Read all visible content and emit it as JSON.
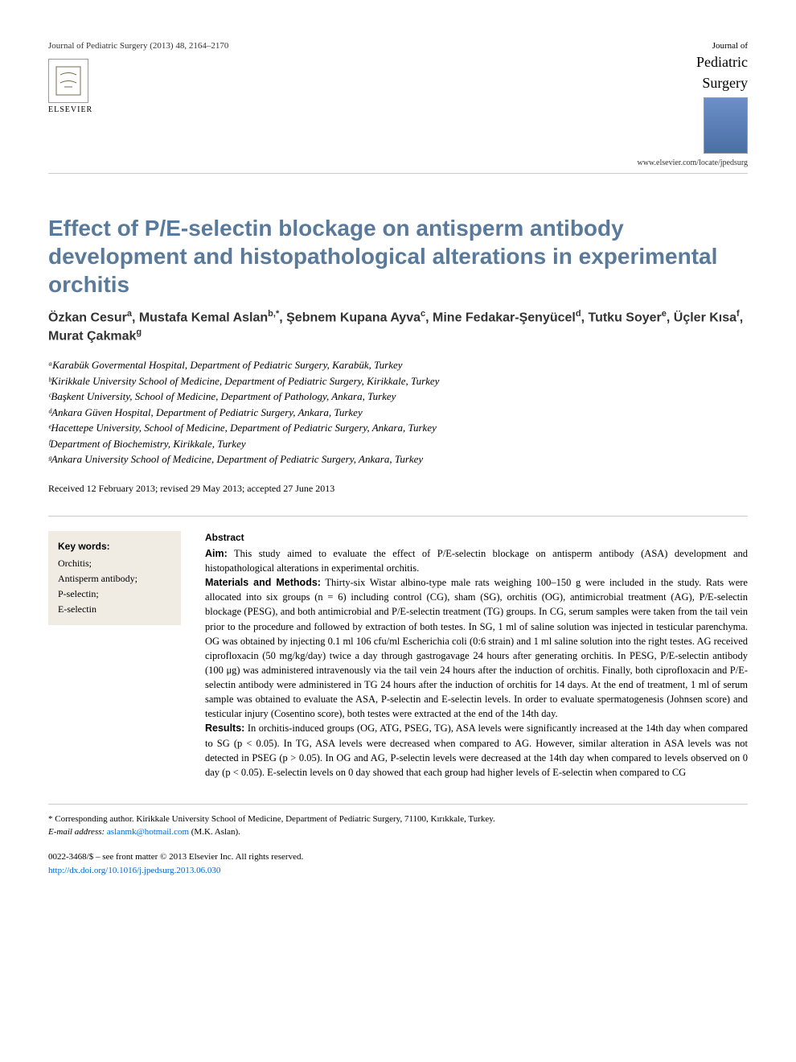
{
  "header": {
    "journal_reference": "Journal of Pediatric Surgery (2013) 48, 2164–2170",
    "publisher": "ELSEVIER",
    "journal_small": "Journal of",
    "journal_large_1": "Pediatric",
    "journal_large_2": "Surgery",
    "journal_url": "www.elsevier.com/locate/jpedsurg"
  },
  "title": "Effect of P/E-selectin blockage on antisperm antibody development and histopathological alterations in experimental orchitis",
  "authors_html": "Özkan Cesur<sup>a</sup>, Mustafa Kemal Aslan<sup>b,*</sup>, Şebnem Kupana Ayva<sup>c</sup>, Mine Fedakar-Şenyücel<sup>d</sup>, Tutku Soyer<sup>e</sup>, Üçler Kısa<sup>f</sup>, Murat Çakmak<sup>g</sup>",
  "affiliations": [
    "ᵃKarabük Govermental Hospital, Department of Pediatric Surgery, Karabük, Turkey",
    "ᵇKirikkale University School of Medicine, Department of Pediatric Surgery, Kirikkale, Turkey",
    "ᶜBaşkent University, School of Medicine, Department of Pathology, Ankara, Turkey",
    "ᵈAnkara Güven Hospital, Department of Pediatric Surgery, Ankara, Turkey",
    "ᵉHacettepe University, School of Medicine, Department of Pediatric Surgery, Ankara, Turkey",
    "ᶠDepartment of Biochemistry, Kirikkale, Turkey",
    "ᵍAnkara University School of Medicine, Department of Pediatric Surgery, Ankara, Turkey"
  ],
  "dates": "Received 12 February 2013; revised 29 May 2013; accepted 27 June 2013",
  "keywords": {
    "heading": "Key words:",
    "items": "Orchitis;\nAntisperm antibody;\nP-selectin;\nE-selectin"
  },
  "abstract": {
    "heading": "Abstract",
    "aim_label": "Aim:",
    "aim_text": " This study aimed to evaluate the effect of P/E-selectin blockage on antisperm antibody (ASA) development and histopathological alterations in experimental orchitis.",
    "methods_label": "Materials and Methods:",
    "methods_text": " Thirty-six Wistar albino-type male rats weighing 100–150 g were included in the study. Rats were allocated into six groups (n = 6) including control (CG), sham (SG), orchitis (OG), antimicrobial treatment (AG), P/E-selectin blockage (PESG), and both antimicrobial and P/E-selectin treatment (TG) groups. In CG, serum samples were taken from the tail vein prior to the procedure and followed by extraction of both testes. In SG, 1 ml of saline solution was injected in testicular parenchyma. OG was obtained by injecting 0.1 ml 106 cfu/ml Escherichia coli (0:6 strain) and 1 ml saline solution into the right testes. AG received ciprofloxacin (50 mg/kg/day) twice a day through gastrogavage 24 hours after generating orchitis. In PESG, P/E-selectin antibody (100 μg) was administered intravenously via the tail vein 24 hours after the induction of orchitis. Finally, both ciprofloxacin and P/E-selectin antibody were administered in TG 24 hours after the induction of orchitis for 14 days. At the end of treatment, 1 ml of serum sample was obtained to evaluate the ASA, P-selectin and E-selectin levels. In order to evaluate spermatogenesis (Johnsen score) and testicular injury (Cosentino score), both testes were extracted at the end of the 14th day.",
    "results_label": "Results:",
    "results_text": " In orchitis-induced groups (OG, ATG, PSEG, TG), ASA levels were significantly increased at the 14th day when compared to SG (p < 0.05). In TG, ASA levels were decreased when compared to AG. However, similar alteration in ASA levels was not detected in PSEG (p > 0.05). In OG and AG, P-selectin levels were decreased at the 14th day when compared to levels observed on 0 day (p < 0.05). E-selectin levels on 0 day showed that each group had higher levels of E-selectin when compared to CG"
  },
  "corresponding": {
    "marker": "*",
    "text": " Corresponding author. Kirikkale University School of Medicine, Department of Pediatric Surgery, 71100, Kırıkkale, Turkey.",
    "email_label": "E-mail address:",
    "email": "aslanmk@hotmail.com",
    "email_author": " (M.K. Aslan)."
  },
  "copyright": "0022-3468/$ – see front matter © 2013 Elsevier Inc. All rights reserved.",
  "doi": "http://dx.doi.org/10.1016/j.jpedsurg.2013.06.030",
  "colors": {
    "title_color": "#5a7a9c",
    "keywords_bg": "#f0ece4",
    "link_color": "#0066cc",
    "divider_color": "#cccccc"
  }
}
